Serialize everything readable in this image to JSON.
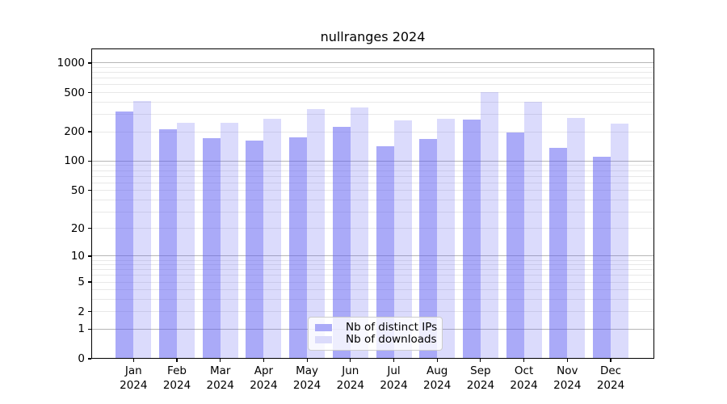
{
  "title": "nullranges 2024",
  "legend": {
    "items": [
      {
        "label": "Nb of distinct IPs",
        "series_key": "distinct_ips"
      },
      {
        "label": "Nb of downloads",
        "series_key": "downloads"
      }
    ]
  },
  "colors": {
    "background": "#ffffff",
    "bar_base": "#5c5cf2",
    "ips_fill": "rgba(92,92,242,0.52)",
    "downloads_fill": "rgba(92,92,242,0.22)",
    "ips_solid": "#aaaaf8",
    "downloads_solid": "#dbdbfb",
    "grid_major": "#b6b6b6",
    "grid_minor": "#e8e8e8",
    "axis": "#000000"
  },
  "chart_data": {
    "type": "bar",
    "title": "nullranges 2024",
    "categories": [
      "Jan 2024",
      "Feb 2024",
      "Mar 2024",
      "Apr 2024",
      "May 2024",
      "Jun 2024",
      "Jul 2024",
      "Aug 2024",
      "Sep 2024",
      "Oct 2024",
      "Nov 2024",
      "Dec 2024"
    ],
    "series": [
      {
        "name": "Nb of distinct IPs",
        "values": [
          320,
          210,
          171,
          162,
          176,
          225,
          143,
          168,
          267,
          197,
          136,
          111
        ]
      },
      {
        "name": "Nb of downloads",
        "values": [
          413,
          248,
          246,
          269,
          342,
          351,
          261,
          272,
          503,
          405,
          274,
          242
        ]
      }
    ],
    "yscale": "log(1+x)",
    "yticks": [
      0,
      1,
      2,
      5,
      10,
      20,
      50,
      100,
      200,
      500,
      1000
    ],
    "ylim": [
      0,
      1400
    ],
    "xlabel": "",
    "ylabel": "",
    "grid": "horizontal major+minor",
    "legend_position": "lower center inside plot"
  }
}
